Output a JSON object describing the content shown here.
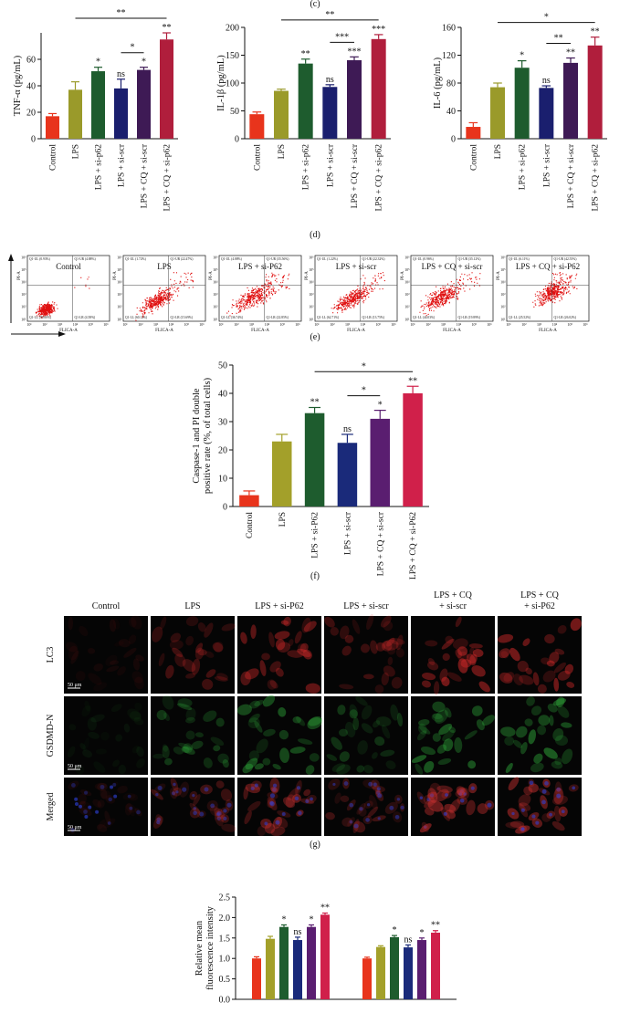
{
  "figure_labels": [
    "(c)",
    "(d)",
    "(e)",
    "(f)",
    "(g)"
  ],
  "chart_data": [
    {
      "type": "bar",
      "y_label": [
        "TNF-α (pg/mL)"
      ],
      "categories": [
        "Control",
        "LPS",
        "LPS + si-p62",
        "LPS + si-scr",
        "LPS + CQ + si-scr",
        "LPS + CQ + si-p62"
      ],
      "values": [
        17,
        37,
        51,
        38,
        52,
        75
      ],
      "errors": [
        2,
        6,
        3,
        7,
        2,
        5
      ],
      "colors": [
        "#e8341c",
        "#9a9a2a",
        "#1e5c2e",
        "#1a1f6e",
        "#3e1a55",
        "#b01e3c"
      ],
      "significance": [
        null,
        null,
        "*",
        "ns",
        "*",
        "**"
      ],
      "brackets": [
        {
          "from": 1,
          "to": 5,
          "label": "**"
        },
        {
          "from": 3,
          "to": 4,
          "label": "*"
        }
      ],
      "ylim": [
        0,
        80
      ],
      "yticks": [
        0,
        20,
        40,
        60
      ]
    },
    {
      "type": "bar",
      "y_label": [
        "IL-1β (pg/mL)"
      ],
      "categories": [
        "Control",
        "LPS",
        "LPS + si-p62",
        "LPS + si-scr",
        "LPS + CQ + si-scr",
        "LPS + CQ + si-p62"
      ],
      "values": [
        44,
        86,
        135,
        93,
        141,
        179
      ],
      "errors": [
        4,
        3,
        8,
        4,
        6,
        8
      ],
      "colors": [
        "#e8341c",
        "#9a9a2a",
        "#1e5c2e",
        "#1a1f6e",
        "#3e1a55",
        "#b01e3c"
      ],
      "significance": [
        null,
        null,
        "**",
        "ns",
        "***",
        "***"
      ],
      "brackets": [
        {
          "from": 1,
          "to": 5,
          "label": "**"
        },
        {
          "from": 3,
          "to": 4,
          "label": "***"
        }
      ],
      "ylim": [
        0,
        200
      ],
      "yticks": [
        0,
        50,
        100,
        150,
        200
      ]
    },
    {
      "type": "bar",
      "y_label": [
        "IL-6 (pg/mL)"
      ],
      "categories": [
        "Control",
        "LPS",
        "LPS + si-p62",
        "LPS + si-scr",
        "LPS + CQ + si-scr",
        "LPS + CQ + si-p62"
      ],
      "values": [
        17,
        74,
        102,
        73,
        109,
        134
      ],
      "errors": [
        6,
        6,
        10,
        3,
        7,
        12
      ],
      "colors": [
        "#e8341c",
        "#9a9a2a",
        "#1e5c2e",
        "#1a1f6e",
        "#3e1a55",
        "#b01e3c"
      ],
      "significance": [
        null,
        null,
        "*",
        "ns",
        "**",
        "**"
      ],
      "brackets": [
        {
          "from": 1,
          "to": 5,
          "label": "*"
        },
        {
          "from": 3,
          "to": 4,
          "label": "**"
        }
      ],
      "ylim": [
        0,
        160
      ],
      "yticks": [
        0,
        40,
        80,
        120,
        160
      ]
    },
    {
      "type": "bar",
      "y_label": [
        "Caspase-1 and PI double",
        "positive rate (%, of total cells)"
      ],
      "categories": [
        "Control",
        "LPS",
        "LPS + si-P62",
        "LPS + si-scr",
        "LPS + CQ + si-scr",
        "LPS + CQ + si-P62"
      ],
      "values": [
        4,
        23,
        33,
        22.5,
        31,
        40
      ],
      "errors": [
        1.5,
        2.5,
        2,
        3,
        3,
        2.5
      ],
      "colors": [
        "#e8341c",
        "#a3a02a",
        "#1e5c2e",
        "#1a2a7a",
        "#5a1e70",
        "#d0204a"
      ],
      "significance": [
        null,
        null,
        "**",
        "ns",
        "*",
        "**"
      ],
      "brackets": [
        {
          "from": 2,
          "to": 5,
          "label": "*"
        },
        {
          "from": 3,
          "to": 4,
          "label": "*"
        }
      ],
      "ylim": [
        0,
        50
      ],
      "yticks": [
        0,
        10,
        20,
        30,
        40,
        50
      ]
    },
    {
      "type": "grouped_bar",
      "y_label": [
        "Relative mean",
        "fluorescence intensity"
      ],
      "series": [
        {
          "color": "#e8341c",
          "values": [
            1.0,
            1.0
          ],
          "errors": [
            0.04,
            0.03
          ],
          "significance": [
            null,
            null
          ]
        },
        {
          "color": "#a3a02a",
          "values": [
            1.48,
            1.28
          ],
          "errors": [
            0.06,
            0.03
          ],
          "significance": [
            null,
            null
          ]
        },
        {
          "color": "#1e5c2e",
          "values": [
            1.77,
            1.52
          ],
          "errors": [
            0.05,
            0.04
          ],
          "significance": [
            "*",
            "*"
          ]
        },
        {
          "color": "#1a2a7a",
          "values": [
            1.45,
            1.27
          ],
          "errors": [
            0.07,
            0.06
          ],
          "significance": [
            "ns",
            "ns"
          ]
        },
        {
          "color": "#5a1e70",
          "values": [
            1.77,
            1.45
          ],
          "errors": [
            0.05,
            0.05
          ],
          "significance": [
            "*",
            "*"
          ]
        },
        {
          "color": "#d0204a",
          "values": [
            2.07,
            1.63
          ],
          "errors": [
            0.04,
            0.05
          ],
          "significance": [
            "**",
            "**"
          ]
        }
      ],
      "ylim": [
        0,
        2.5
      ],
      "yticks": [
        {
          "value": 0,
          "label": "0.0"
        },
        0.5,
        {
          "value": 1,
          "label": "1.0"
        },
        1.5,
        {
          "value": 2,
          "label": "2.0"
        },
        2.5
      ]
    }
  ],
  "flow": {
    "x_label": "FLICA-A",
    "y_label": "PI-A",
    "ticks": [
      "10¹",
      "10²",
      "10³",
      "10⁴",
      "10⁵",
      "10⁶"
    ],
    "panels": [
      {
        "title": "Control",
        "quadrants": [
          "Q1-UL (0.93%)",
          "Q1-UR (4.88%)",
          "Q1-LL (89.60%)",
          "Q1-LR (4.58%)"
        ]
      },
      {
        "title": "LPS",
        "quadrants": [
          "Q1-UL (1.72%)",
          "Q1-UR (22.47%)",
          "Q1-LL (60.12%)",
          "Q1-LR (15.69%)"
        ]
      },
      {
        "title": "LPS + si-P62",
        "quadrants": [
          "Q1-UL (4.88%)",
          "Q1-UR (35.56%)",
          "Q1-LL (36.74%)",
          "Q1-LR (22.85%)"
        ]
      },
      {
        "title": "LPS + si-scr",
        "quadrants": [
          "Q1-UL (1.22%)",
          "Q1-UR (22.32%)",
          "Q1-LL (62.71%)",
          "Q1-LR (13.75%)"
        ]
      },
      {
        "title": "LPS + CQ + si-scr",
        "quadrants": [
          "Q1-UL (0.96%)",
          "Q1-UR (35.12%)",
          "Q1-LL (44.03%)",
          "Q1-LR (19.89%)"
        ]
      },
      {
        "title": "LPS + CQ + si-P62",
        "quadrants": [
          "Q1-UL (6.11%)",
          "Q1-UR (42.55%)",
          "Q1-LL (25.52%)",
          "Q1-LR (26.02%)"
        ]
      }
    ]
  },
  "microscopy": {
    "columns": [
      [
        "Control"
      ],
      [
        "LPS"
      ],
      [
        "LPS + si-P62"
      ],
      [
        "LPS + si-scr"
      ],
      [
        "LPS + CQ",
        "+ si-scr"
      ],
      [
        "LPS + CQ",
        "+ si-P62"
      ]
    ],
    "rows": [
      "LC3",
      "GSDMD-N",
      "Merged"
    ],
    "scale_bar": "50 μm"
  }
}
